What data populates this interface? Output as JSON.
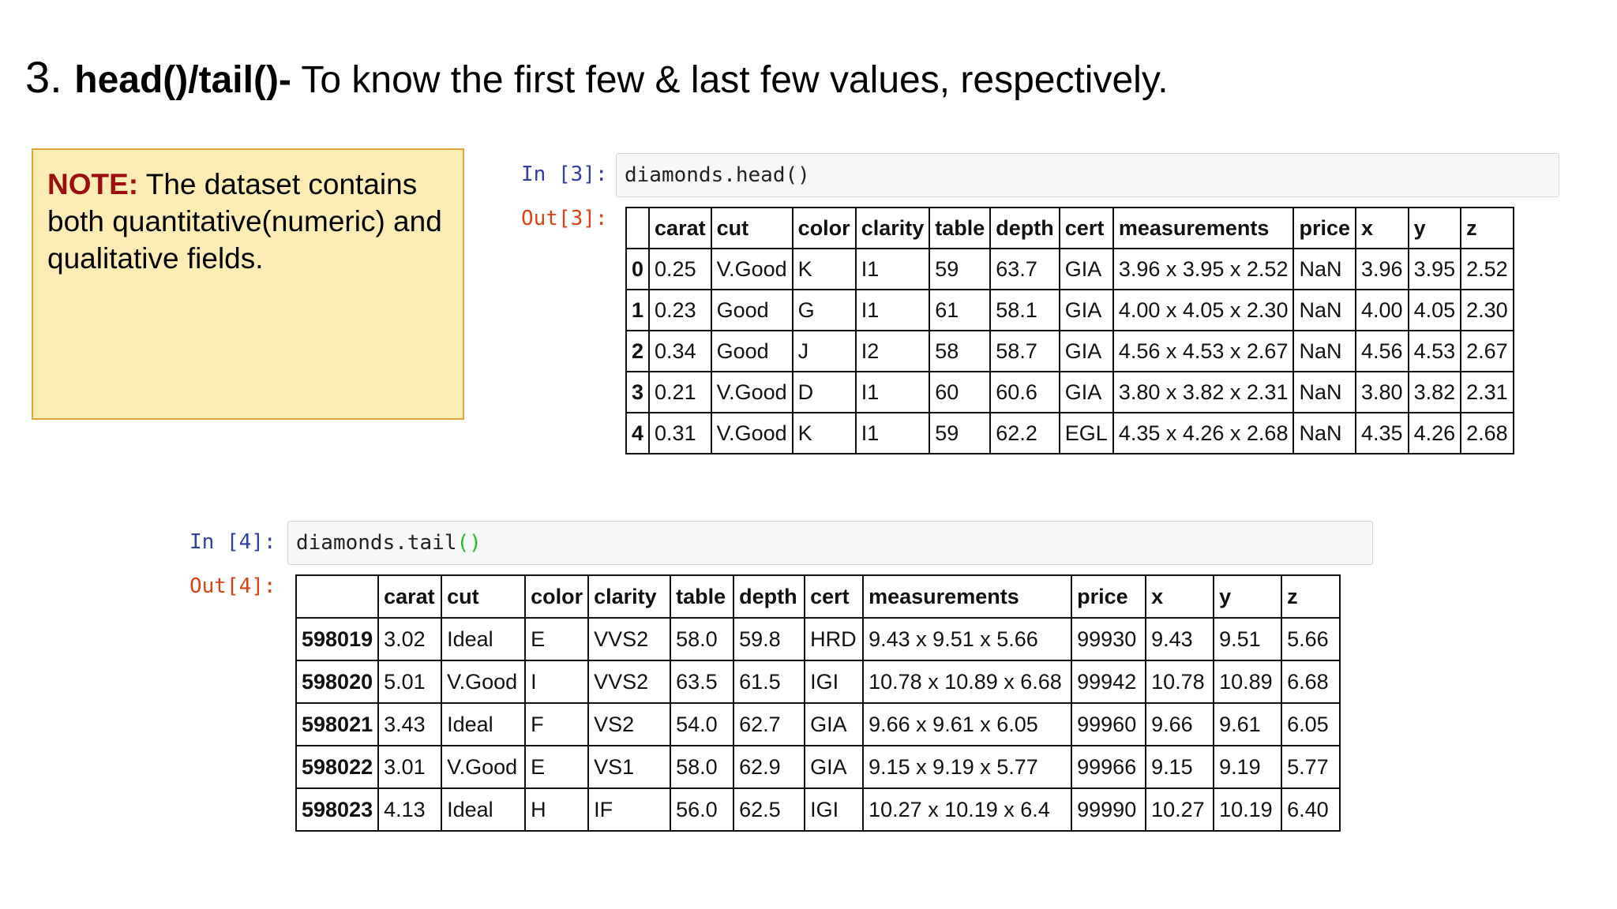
{
  "title": {
    "number": "3.",
    "functions": "head()/tail()-",
    "description": " To know the first few & last few  values, respectively."
  },
  "note": {
    "label": "NOTE:",
    "text": " The dataset contains both quantitative(numeric) and qualitative fields."
  },
  "cell3": {
    "in_prompt": "In [3]:",
    "code": "diamonds.head()",
    "out_prompt": "Out[3]:"
  },
  "cell4": {
    "in_prompt": "In [4]:",
    "code_prefix": "diamonds.tail",
    "code_parens": "()",
    "out_prompt": "Out[4]:"
  },
  "columns": [
    "",
    "carat",
    "cut",
    "color",
    "clarity",
    "table",
    "depth",
    "cert",
    "measurements",
    "price",
    "x",
    "y",
    "z"
  ],
  "head_rows": [
    [
      "0",
      "0.25",
      "V.Good",
      "K",
      "I1",
      "59",
      "63.7",
      "GIA",
      "3.96 x 3.95 x 2.52",
      "NaN",
      "3.96",
      "3.95",
      "2.52"
    ],
    [
      "1",
      "0.23",
      "Good",
      "G",
      "I1",
      "61",
      "58.1",
      "GIA",
      "4.00 x 4.05 x 2.30",
      "NaN",
      "4.00",
      "4.05",
      "2.30"
    ],
    [
      "2",
      "0.34",
      "Good",
      "J",
      "I2",
      "58",
      "58.7",
      "GIA",
      "4.56 x 4.53 x 2.67",
      "NaN",
      "4.56",
      "4.53",
      "2.67"
    ],
    [
      "3",
      "0.21",
      "V.Good",
      "D",
      "I1",
      "60",
      "60.6",
      "GIA",
      "3.80 x 3.82 x 2.31",
      "NaN",
      "3.80",
      "3.82",
      "2.31"
    ],
    [
      "4",
      "0.31",
      "V.Good",
      "K",
      "I1",
      "59",
      "62.2",
      "EGL",
      "4.35 x 4.26 x 2.68",
      "NaN",
      "4.35",
      "4.26",
      "2.68"
    ]
  ],
  "tail_rows": [
    [
      "598019",
      "3.02",
      "Ideal",
      "E",
      "VVS2",
      "58.0",
      "59.8",
      "HRD",
      "9.43 x 9.51 x 5.66",
      "99930",
      "9.43",
      "9.51",
      "5.66"
    ],
    [
      "598020",
      "5.01",
      "V.Good",
      "I",
      "VVS2",
      "63.5",
      "61.5",
      "IGI",
      "10.78 x 10.89 x 6.68",
      "99942",
      "10.78",
      "10.89",
      "6.68"
    ],
    [
      "598021",
      "3.43",
      "Ideal",
      "F",
      "VS2",
      "54.0",
      "62.7",
      "GIA",
      "9.66 x 9.61 x 6.05",
      "99960",
      "9.66",
      "9.61",
      "6.05"
    ],
    [
      "598022",
      "3.01",
      "V.Good",
      "E",
      "VS1",
      "58.0",
      "62.9",
      "GIA",
      "9.15 x 9.19 x 5.77",
      "99966",
      "9.15",
      "9.19",
      "5.77"
    ],
    [
      "598023",
      "4.13",
      "Ideal",
      "H",
      "IF",
      "56.0",
      "62.5",
      "IGI",
      "10.27 x 10.19 x 6.4",
      "99990",
      "10.27",
      "10.19",
      "6.40"
    ]
  ]
}
